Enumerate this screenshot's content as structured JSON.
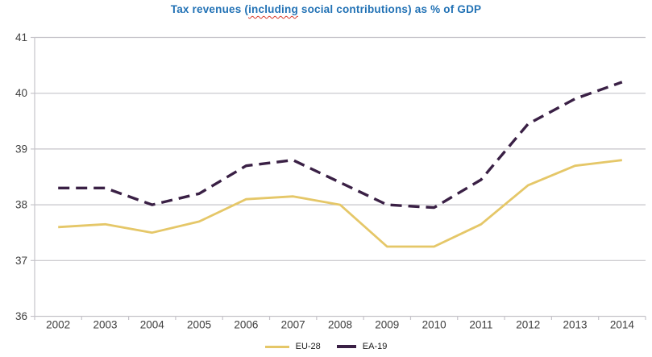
{
  "title": {
    "pre": "Tax revenues (",
    "spellchecked_word": "including",
    "post": " social contributions) as % of GDP"
  },
  "colors": {
    "title_text": "#2272b5",
    "spellcheck_underline": "#d93a2b",
    "grid": "#c6c4ca",
    "axis_text": "#404040",
    "eu28_line": "#e5c768",
    "ea19_line": "#3a2045",
    "background": "#ffffff"
  },
  "chart_data": {
    "type": "line",
    "title": "Tax revenues (including social contributions) as % of GDP",
    "categories": [
      "2002",
      "2003",
      "2004",
      "2005",
      "2006",
      "2007",
      "2008",
      "2009",
      "2010",
      "2011",
      "2012",
      "2013",
      "2014"
    ],
    "series": [
      {
        "name": "EU-28",
        "color": "#e5c768",
        "style": "solid",
        "values": [
          37.6,
          37.65,
          37.5,
          37.7,
          38.1,
          38.15,
          38.0,
          37.25,
          37.25,
          37.65,
          38.35,
          38.7,
          38.8
        ]
      },
      {
        "name": "EA-19",
        "color": "#3a2045",
        "style": "dashed",
        "values": [
          38.3,
          38.3,
          38.0,
          38.2,
          38.7,
          38.8,
          38.4,
          38.0,
          37.95,
          38.45,
          39.45,
          39.9,
          40.2
        ]
      }
    ],
    "xlabel": "",
    "ylabel": "",
    "ylim": [
      36,
      41
    ],
    "yticks": [
      36,
      37,
      38,
      39,
      40,
      41
    ],
    "grid": "horizontal",
    "legend_position": "bottom-center"
  }
}
